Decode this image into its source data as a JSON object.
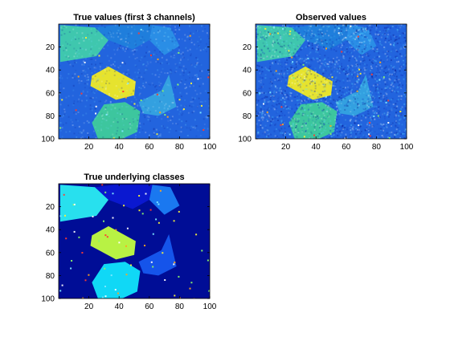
{
  "figure_background": "#ffffff",
  "chart_data": [
    {
      "type": "heatmap",
      "title": "True values (first 3 channels)",
      "xlim": [
        0,
        100
      ],
      "ylim": [
        0,
        100
      ],
      "xticks": [
        20,
        40,
        60,
        80,
        100
      ],
      "yticks": [
        20,
        40,
        60,
        80,
        100
      ],
      "y_direction": "reversed",
      "colormap": "jet",
      "noise": "low",
      "regions": [
        {
          "label": "top-left",
          "color": "#3fc7ae",
          "vertices": [
            [
              1,
              1
            ],
            [
              2,
              1
            ],
            [
              24,
              3
            ],
            [
              33,
              14
            ],
            [
              25,
              28
            ],
            [
              1,
              33
            ]
          ]
        },
        {
          "label": "top-middle",
          "color": "#1f7edc",
          "vertices": [
            [
              37,
              1
            ],
            [
              62,
              1
            ],
            [
              60,
              14
            ],
            [
              49,
              22
            ],
            [
              33,
              14
            ],
            [
              24,
              3
            ]
          ]
        },
        {
          "label": "top-right",
          "color": "#2a8ee6",
          "vertices": [
            [
              62,
              1
            ],
            [
              74,
              3
            ],
            [
              80,
              19
            ],
            [
              70,
              27
            ],
            [
              60,
              14
            ]
          ]
        },
        {
          "label": "center",
          "color": "#e6e32e",
          "vertices": [
            [
              22,
              45
            ],
            [
              33,
              37
            ],
            [
              51,
              50
            ],
            [
              50,
              62
            ],
            [
              38,
              66
            ],
            [
              21,
              54
            ]
          ]
        },
        {
          "label": "right-mid",
          "color": "#33a0e0",
          "vertices": [
            [
              73,
              44
            ],
            [
              68,
              58
            ],
            [
              53,
              68
            ],
            [
              56,
              78
            ],
            [
              66,
              80
            ],
            [
              78,
              72
            ]
          ]
        },
        {
          "label": "bottom",
          "color": "#3dc69e",
          "vertices": [
            [
              30,
              70
            ],
            [
              44,
              68
            ],
            [
              54,
              76
            ],
            [
              52,
              94
            ],
            [
              42,
              100
            ],
            [
              26,
              100
            ],
            [
              22,
              86
            ]
          ]
        }
      ],
      "background_color": "#2264de"
    },
    {
      "type": "heatmap",
      "title": "Observed values",
      "xlim": [
        0,
        100
      ],
      "ylim": [
        0,
        100
      ],
      "xticks": [
        20,
        40,
        60,
        80,
        100
      ],
      "yticks": [
        20,
        40,
        60,
        80,
        100
      ],
      "y_direction": "reversed",
      "colormap": "jet",
      "noise": "high",
      "regions": [
        {
          "label": "top-left",
          "color": "#3fc7ae",
          "vertices": [
            [
              1,
              1
            ],
            [
              2,
              1
            ],
            [
              24,
              3
            ],
            [
              33,
              14
            ],
            [
              25,
              28
            ],
            [
              1,
              33
            ]
          ]
        },
        {
          "label": "top-middle",
          "color": "#1f7edc",
          "vertices": [
            [
              37,
              1
            ],
            [
              62,
              1
            ],
            [
              60,
              14
            ],
            [
              49,
              22
            ],
            [
              33,
              14
            ],
            [
              24,
              3
            ]
          ]
        },
        {
          "label": "top-right",
          "color": "#2a8ee6",
          "vertices": [
            [
              62,
              1
            ],
            [
              74,
              3
            ],
            [
              80,
              19
            ],
            [
              70,
              27
            ],
            [
              60,
              14
            ]
          ]
        },
        {
          "label": "center",
          "color": "#e6e32e",
          "vertices": [
            [
              22,
              45
            ],
            [
              33,
              37
            ],
            [
              51,
              50
            ],
            [
              50,
              62
            ],
            [
              38,
              66
            ],
            [
              21,
              54
            ]
          ]
        },
        {
          "label": "right-mid",
          "color": "#33a0e0",
          "vertices": [
            [
              73,
              44
            ],
            [
              68,
              58
            ],
            [
              53,
              68
            ],
            [
              56,
              78
            ],
            [
              66,
              80
            ],
            [
              78,
              72
            ]
          ]
        },
        {
          "label": "bottom",
          "color": "#3dc69e",
          "vertices": [
            [
              30,
              70
            ],
            [
              44,
              68
            ],
            [
              54,
              76
            ],
            [
              52,
              94
            ],
            [
              42,
              100
            ],
            [
              26,
              100
            ],
            [
              22,
              86
            ]
          ]
        }
      ],
      "background_color": "#2264de"
    },
    {
      "type": "heatmap",
      "title": "True underlying classes",
      "xlim": [
        0,
        100
      ],
      "ylim": [
        0,
        100
      ],
      "xticks": [
        20,
        40,
        60,
        80,
        100
      ],
      "yticks": [
        20,
        40,
        60,
        80,
        100
      ],
      "y_direction": "reversed",
      "colormap": "jet",
      "noise": "speckle",
      "regions": [
        {
          "label": "top-left",
          "color": "#28e0ee",
          "vertices": [
            [
              1,
              1
            ],
            [
              2,
              1
            ],
            [
              24,
              3
            ],
            [
              33,
              14
            ],
            [
              25,
              28
            ],
            [
              1,
              33
            ]
          ]
        },
        {
          "label": "top-middle",
          "color": "#0a18d0",
          "vertices": [
            [
              37,
              1
            ],
            [
              62,
              1
            ],
            [
              60,
              14
            ],
            [
              49,
              22
            ],
            [
              33,
              14
            ],
            [
              24,
              3
            ]
          ]
        },
        {
          "label": "top-right",
          "color": "#1a78f0",
          "vertices": [
            [
              62,
              1
            ],
            [
              74,
              3
            ],
            [
              80,
              19
            ],
            [
              70,
              27
            ],
            [
              60,
              14
            ]
          ]
        },
        {
          "label": "center",
          "color": "#b8f244",
          "vertices": [
            [
              22,
              45
            ],
            [
              33,
              37
            ],
            [
              51,
              50
            ],
            [
              50,
              62
            ],
            [
              38,
              66
            ],
            [
              21,
              54
            ]
          ]
        },
        {
          "label": "right-mid",
          "color": "#1554ea",
          "vertices": [
            [
              73,
              44
            ],
            [
              68,
              58
            ],
            [
              53,
              68
            ],
            [
              56,
              78
            ],
            [
              66,
              80
            ],
            [
              78,
              72
            ]
          ]
        },
        {
          "label": "bottom",
          "color": "#10d8f6",
          "vertices": [
            [
              30,
              70
            ],
            [
              44,
              68
            ],
            [
              54,
              76
            ],
            [
              52,
              94
            ],
            [
              42,
              100
            ],
            [
              26,
              100
            ],
            [
              22,
              86
            ]
          ]
        }
      ],
      "background_color": "#000d96"
    }
  ]
}
